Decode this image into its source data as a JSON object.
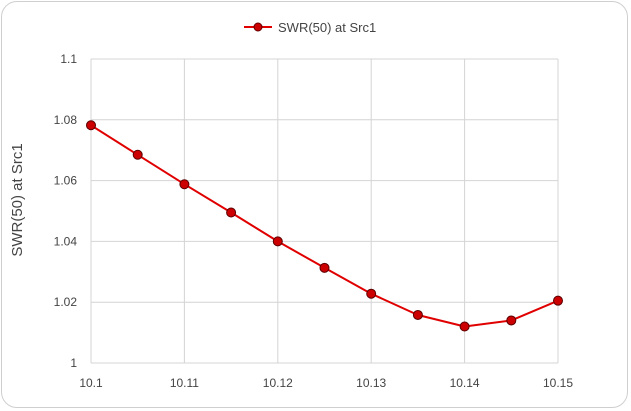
{
  "chart_data": {
    "type": "line",
    "xlabel": "",
    "ylabel": "SWR(50) at Src1",
    "x": [
      10.1,
      10.105,
      10.11,
      10.115,
      10.12,
      10.125,
      10.13,
      10.135,
      10.14,
      10.145,
      10.15
    ],
    "x_ticks": [
      "10.1",
      "10.11",
      "10.12",
      "10.13",
      "10.14",
      "10.15"
    ],
    "y_ticks": [
      "1",
      "1.02",
      "1.04",
      "1.06",
      "1.08",
      "1.1"
    ],
    "xlim": [
      10.1,
      10.15
    ],
    "ylim": [
      1.0,
      1.1
    ],
    "grid": true,
    "legend_position": "top-center",
    "series": [
      {
        "name": "SWR(50) at Src1",
        "color": "#e00000",
        "marker_color": "#cc0000",
        "values": [
          1.0782,
          1.0685,
          1.0588,
          1.0495,
          1.04,
          1.0313,
          1.0228,
          1.0158,
          1.012,
          1.014,
          1.0205
        ]
      }
    ]
  }
}
